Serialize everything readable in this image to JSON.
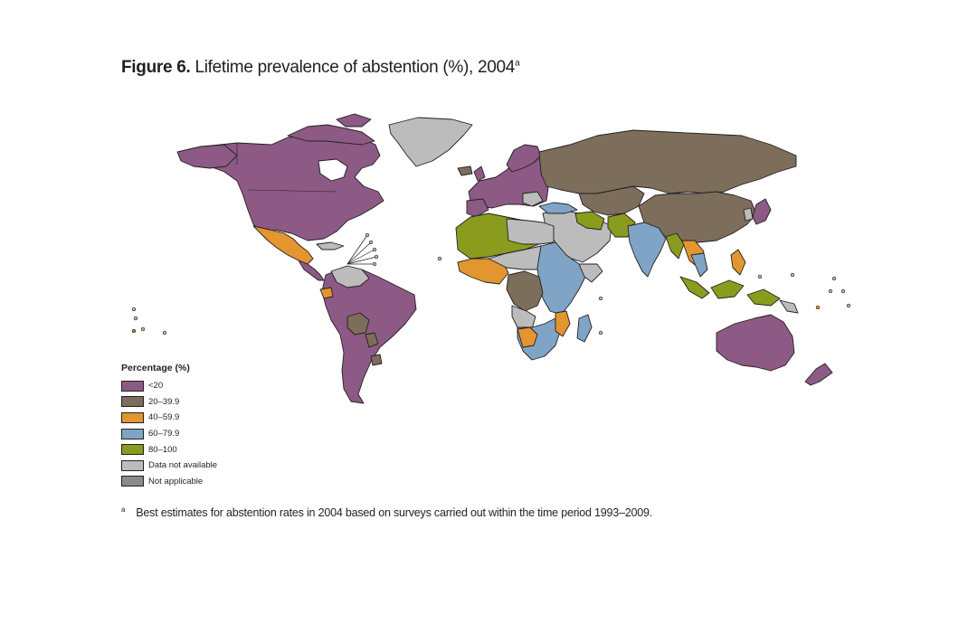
{
  "figure": {
    "label": "Figure 6.",
    "title": "Lifetime prevalence of abstention (%), 2004",
    "title_superscript": "a"
  },
  "legend": {
    "title": "Percentage (%)",
    "items": [
      {
        "label": "<20",
        "color": "#8c5a84"
      },
      {
        "label": "20–39.9",
        "color": "#7d6d5b"
      },
      {
        "label": "40–59.9",
        "color": "#e39530"
      },
      {
        "label": "60–79.9",
        "color": "#7fa4c5"
      },
      {
        "label": "80–100",
        "color": "#8a9c1e"
      },
      {
        "label": "Data not available",
        "color": "#bcbcbc"
      },
      {
        "label": "Not applicable",
        "color": "#8a8a8c"
      }
    ]
  },
  "footnote": {
    "mark": "a",
    "text": "Best estimates for abstention rates in 2004 based on surveys carried out within the time period 1993–2009."
  }
}
